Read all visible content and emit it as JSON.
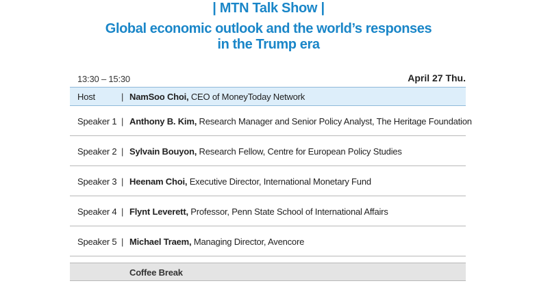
{
  "header": {
    "show": "| MTN Talk Show |",
    "title_line1": "Global economic outlook and the world’s responses",
    "title_line2": "in the Trump era"
  },
  "schedule": {
    "time": "13:30 – 15:30",
    "date": "April 27 Thu."
  },
  "host": {
    "role": "Host",
    "separator": "|",
    "name": "NamSoo Choi,",
    "desc": " CEO of MoneyToday Network"
  },
  "speakers": [
    {
      "role": "Speaker 1",
      "separator": "|",
      "name": "Anthony B. Kim,",
      "desc": " Research Manager and Senior Policy Analyst, The Heritage Foundation"
    },
    {
      "role": "Speaker 2",
      "separator": "|",
      "name": "Sylvain Bouyon,",
      "desc": " Research Fellow, Centre for European Policy Studies"
    },
    {
      "role": "Speaker 3",
      "separator": "|",
      "name": "Heenam Choi,",
      "desc": " Executive Director, International Monetary Fund"
    },
    {
      "role": "Speaker 4",
      "separator": "|",
      "name": "Flynt Leverett,",
      "desc": " Professor, Penn State School of International Affairs"
    },
    {
      "role": "Speaker 5",
      "separator": "|",
      "name": "Michael Traem,",
      "desc": " Managing Director, Avencore"
    }
  ],
  "break": {
    "label": "Coffee Break"
  },
  "colors": {
    "accent": "#1a86c8",
    "host_bg": "#ddeefa",
    "break_bg": "#e4e4e4"
  }
}
